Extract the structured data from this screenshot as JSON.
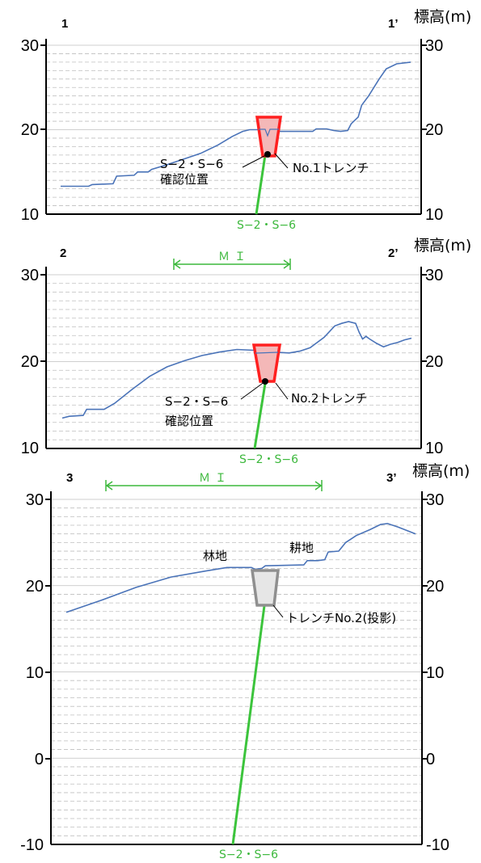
{
  "panels": [
    {
      "id": "p1",
      "left_label": "1",
      "right_label": "1’",
      "y_title": "標高(m)",
      "yticks": [
        10,
        20,
        30
      ],
      "profile": [
        [
          0,
          13.3
        ],
        [
          0.08,
          13.3
        ],
        [
          0.09,
          13.5
        ],
        [
          0.15,
          13.6
        ],
        [
          0.16,
          14.5
        ],
        [
          0.21,
          14.6
        ],
        [
          0.22,
          15.0
        ],
        [
          0.25,
          15.0
        ],
        [
          0.26,
          15.3
        ],
        [
          0.3,
          15.8
        ],
        [
          0.35,
          16.5
        ],
        [
          0.4,
          17.2
        ],
        [
          0.45,
          18.2
        ],
        [
          0.49,
          19.2
        ],
        [
          0.52,
          19.8
        ],
        [
          0.54,
          20.0
        ],
        [
          0.57,
          20.0
        ],
        [
          0.59,
          19.7
        ],
        [
          0.62,
          19.8
        ],
        [
          0.7,
          19.8
        ],
        [
          0.72,
          19.8
        ],
        [
          0.73,
          20.1
        ],
        [
          0.76,
          20.1
        ],
        [
          0.78,
          19.9
        ],
        [
          0.8,
          19.8
        ],
        [
          0.82,
          19.9
        ],
        [
          0.83,
          20.7
        ],
        [
          0.85,
          21.5
        ],
        [
          0.86,
          22.9
        ],
        [
          0.88,
          24.0
        ],
        [
          0.91,
          26.0
        ],
        [
          0.93,
          27.2
        ],
        [
          0.96,
          27.8
        ],
        [
          1.0,
          28.0
        ]
      ],
      "trench": {
        "name": "No.1トレンチ",
        "style": "red"
      },
      "confirm_label": [
        "S−2・S−6",
        "確認位置"
      ],
      "fault_label": "S−2・S−6",
      "mi_label": ""
    },
    {
      "id": "p2",
      "left_label": "2",
      "right_label": "2’",
      "y_title": "標高(m)",
      "yticks": [
        10,
        20,
        30
      ],
      "profile": [
        [
          0,
          13.5
        ],
        [
          0.02,
          13.7
        ],
        [
          0.06,
          13.8
        ],
        [
          0.07,
          14.5
        ],
        [
          0.12,
          14.5
        ],
        [
          0.15,
          15.2
        ],
        [
          0.2,
          16.8
        ],
        [
          0.25,
          18.3
        ],
        [
          0.3,
          19.4
        ],
        [
          0.35,
          20.1
        ],
        [
          0.4,
          20.7
        ],
        [
          0.45,
          21.1
        ],
        [
          0.5,
          21.4
        ],
        [
          0.55,
          21.3
        ],
        [
          0.6,
          21.1
        ],
        [
          0.65,
          21.0
        ],
        [
          0.68,
          21.2
        ],
        [
          0.71,
          21.6
        ],
        [
          0.75,
          22.8
        ],
        [
          0.78,
          24.1
        ],
        [
          0.8,
          24.4
        ],
        [
          0.82,
          24.6
        ],
        [
          0.84,
          24.4
        ],
        [
          0.85,
          23.4
        ],
        [
          0.86,
          22.6
        ],
        [
          0.87,
          22.9
        ],
        [
          0.88,
          22.6
        ],
        [
          0.9,
          22.1
        ],
        [
          0.92,
          21.7
        ],
        [
          0.94,
          22.0
        ],
        [
          0.96,
          22.2
        ],
        [
          0.98,
          22.5
        ],
        [
          1.0,
          22.7
        ]
      ],
      "trench": {
        "name": "No.2トレンチ",
        "style": "red"
      },
      "confirm_label": [
        "S−2・S−6",
        "確認位置"
      ],
      "fault_label": "S−2・S−6",
      "mi_label": "ＭＩ"
    },
    {
      "id": "p3",
      "left_label": "3",
      "right_label": "3’",
      "y_title": "標高(m)",
      "yticks": [
        -10,
        0,
        10,
        20,
        30
      ],
      "profile": [
        [
          0,
          16.9
        ],
        [
          0.1,
          18.3
        ],
        [
          0.2,
          19.8
        ],
        [
          0.3,
          21.0
        ],
        [
          0.4,
          21.7
        ],
        [
          0.46,
          22.1
        ],
        [
          0.53,
          22.1
        ],
        [
          0.54,
          21.9
        ],
        [
          0.56,
          22.0
        ],
        [
          0.57,
          22.3
        ],
        [
          0.68,
          22.4
        ],
        [
          0.69,
          22.9
        ],
        [
          0.72,
          22.9
        ],
        [
          0.74,
          23.0
        ],
        [
          0.75,
          23.9
        ],
        [
          0.78,
          24.0
        ],
        [
          0.8,
          25.0
        ],
        [
          0.83,
          25.8
        ],
        [
          0.87,
          26.5
        ],
        [
          0.9,
          27.1
        ],
        [
          0.92,
          27.2
        ],
        [
          0.95,
          26.8
        ],
        [
          1.0,
          26.0
        ]
      ],
      "trench": {
        "name": "トレンチNo.2(投影)",
        "style": "gray"
      },
      "forest_label": "林地",
      "field_label": "耕地",
      "fault_label": "S−2・S−6",
      "mi_label": "ＭＩ"
    }
  ],
  "colors": {
    "profile": "#4a73b8",
    "fault": "#3cc43c",
    "trench_red": "#ff2020",
    "trench_red_fill": "#f4b8b8",
    "trench_gray": "#8f8f8f",
    "trench_gray_fill": "#e6e6e6",
    "grid": "#bfbfbf"
  }
}
